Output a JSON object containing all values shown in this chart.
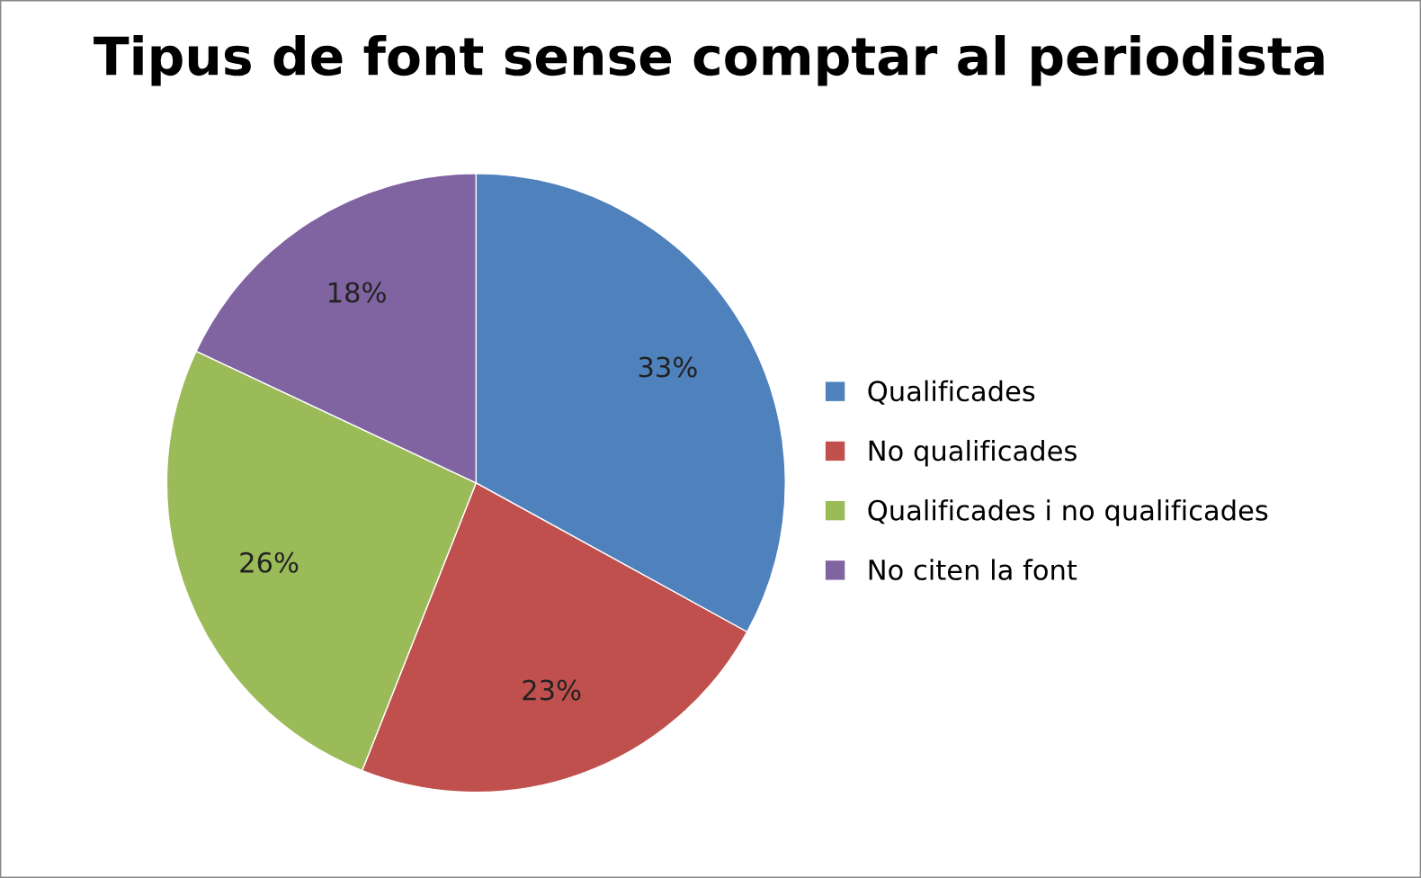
{
  "chart_data": {
    "type": "pie",
    "title": "Tipus de font sense comptar al periodista",
    "categories": [
      "Qualificades",
      "No qualificades",
      "Qualificades i no qualificades",
      "No citen la font"
    ],
    "values": [
      33,
      23,
      26,
      18
    ],
    "value_labels": [
      "33%",
      "23%",
      "26%",
      "18%"
    ],
    "colors": [
      "#4f81bd",
      "#c0504d",
      "#9bbb59",
      "#8064a2"
    ],
    "legend": "right"
  }
}
